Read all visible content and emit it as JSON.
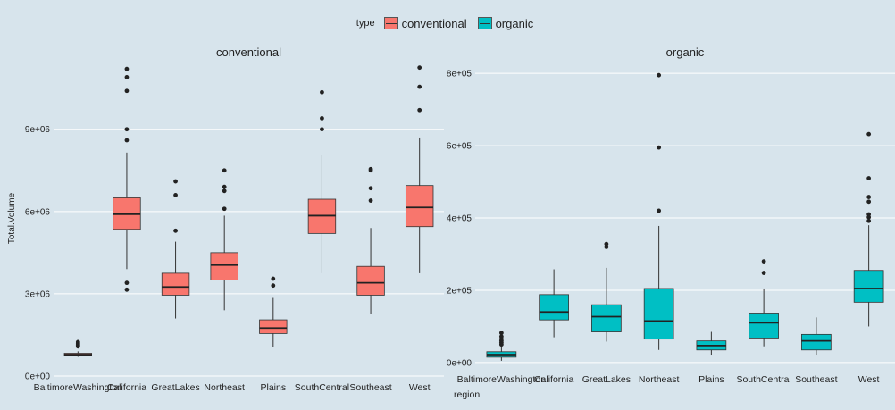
{
  "legend": {
    "title": "type",
    "items": [
      {
        "label": "conventional",
        "color": "#f8766d"
      },
      {
        "label": "organic",
        "color": "#00bfc4"
      }
    ]
  },
  "chart_data": [
    {
      "type": "boxplot",
      "title": "conventional",
      "xlabel": "",
      "ylabel": "Total.Volume",
      "fill": "#f8766d",
      "ylim": [
        0,
        11500000
      ],
      "yticks": [
        0,
        3000000,
        6000000,
        9000000
      ],
      "ytick_labels": [
        "0e+00",
        "3e+06",
        "6e+06",
        "9e+06"
      ],
      "categories": [
        "BaltimoreWashington",
        "California",
        "GreatLakes",
        "Northeast",
        "Plains",
        "SouthCentral",
        "Southeast",
        "West"
      ],
      "boxes": [
        {
          "category": "BaltimoreWashington",
          "whisker_low": 700000,
          "q1": 730000,
          "median": 780000,
          "q3": 830000,
          "whisker_high": 900000,
          "outliers": [
            1080000,
            1120000,
            1160000,
            1200000,
            1240000
          ]
        },
        {
          "category": "California",
          "whisker_low": 3900000,
          "q1": 5350000,
          "median": 5900000,
          "q3": 6500000,
          "whisker_high": 8150000,
          "outliers": [
            3150000,
            3400000,
            8600000,
            9000000,
            10400000,
            10900000,
            11200000
          ]
        },
        {
          "category": "GreatLakes",
          "whisker_low": 2100000,
          "q1": 2950000,
          "median": 3250000,
          "q3": 3750000,
          "whisker_high": 4900000,
          "outliers": [
            5300000,
            6600000,
            7100000
          ]
        },
        {
          "category": "Northeast",
          "whisker_low": 2400000,
          "q1": 3500000,
          "median": 4050000,
          "q3": 4500000,
          "whisker_high": 5850000,
          "outliers": [
            6100000,
            6750000,
            6900000,
            7500000
          ]
        },
        {
          "category": "Plains",
          "whisker_low": 1050000,
          "q1": 1550000,
          "median": 1750000,
          "q3": 2050000,
          "whisker_high": 2850000,
          "outliers": [
            3300000,
            3550000
          ]
        },
        {
          "category": "SouthCentral",
          "whisker_low": 3750000,
          "q1": 5200000,
          "median": 5850000,
          "q3": 6450000,
          "whisker_high": 8050000,
          "outliers": [
            9000000,
            9400000,
            10350000
          ]
        },
        {
          "category": "Southeast",
          "whisker_low": 2250000,
          "q1": 2950000,
          "median": 3400000,
          "q3": 4000000,
          "whisker_high": 5400000,
          "outliers": [
            6400000,
            6850000,
            7500000,
            7550000
          ]
        },
        {
          "category": "West",
          "whisker_low": 3750000,
          "q1": 5450000,
          "median": 6150000,
          "q3": 6950000,
          "whisker_high": 8700000,
          "outliers": [
            9700000,
            10550000,
            11250000
          ]
        }
      ]
    },
    {
      "type": "boxplot",
      "title": "organic",
      "xlabel": "region",
      "ylabel": "",
      "fill": "#00bfc4",
      "ylim": [
        -15000,
        835000
      ],
      "yticks": [
        0,
        200000,
        400000,
        600000,
        800000
      ],
      "ytick_labels": [
        "0e+00",
        "2e+05",
        "4e+05",
        "6e+05",
        "8e+05"
      ],
      "categories": [
        "BaltimoreWashington",
        "California",
        "GreatLakes",
        "Northeast",
        "Plains",
        "SouthCentral",
        "Southeast",
        "West"
      ],
      "boxes": [
        {
          "category": "BaltimoreWashington",
          "whisker_low": 5000,
          "q1": 15000,
          "median": 22000,
          "q3": 30000,
          "whisker_high": 45000,
          "outliers": [
            50000,
            55000,
            60000,
            65000,
            72000,
            82000
          ]
        },
        {
          "category": "California",
          "whisker_low": 70000,
          "q1": 118000,
          "median": 140000,
          "q3": 188000,
          "whisker_high": 258000,
          "outliers": []
        },
        {
          "category": "GreatLakes",
          "whisker_low": 58000,
          "q1": 85000,
          "median": 127000,
          "q3": 160000,
          "whisker_high": 262000,
          "outliers": [
            320000,
            328000
          ]
        },
        {
          "category": "Northeast",
          "whisker_low": 35000,
          "q1": 65000,
          "median": 115000,
          "q3": 205000,
          "whisker_high": 378000,
          "outliers": [
            420000,
            595000,
            795000
          ]
        },
        {
          "category": "Plains",
          "whisker_low": 22000,
          "q1": 35000,
          "median": 47000,
          "q3": 60000,
          "whisker_high": 85000,
          "outliers": []
        },
        {
          "category": "SouthCentral",
          "whisker_low": 45000,
          "q1": 68000,
          "median": 110000,
          "q3": 137000,
          "whisker_high": 205000,
          "outliers": [
            248000,
            280000
          ]
        },
        {
          "category": "Southeast",
          "whisker_low": 22000,
          "q1": 35000,
          "median": 60000,
          "q3": 78000,
          "whisker_high": 125000,
          "outliers": []
        },
        {
          "category": "West",
          "whisker_low": 100000,
          "q1": 167000,
          "median": 205000,
          "q3": 255000,
          "whisker_high": 380000,
          "outliers": [
            392000,
            402000,
            410000,
            445000,
            458000,
            510000,
            632000
          ]
        }
      ]
    }
  ]
}
